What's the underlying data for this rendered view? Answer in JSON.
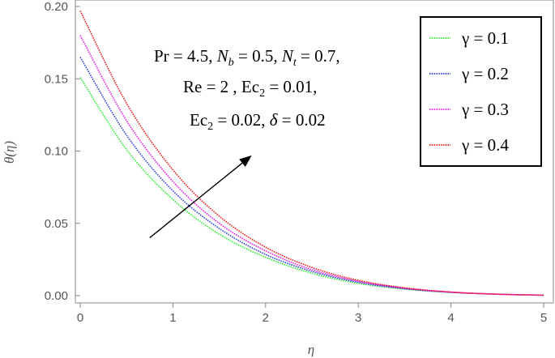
{
  "chart_data": {
    "type": "line",
    "xlabel": "η",
    "ylabel": "θ(η)",
    "xlim": [
      0,
      5
    ],
    "ylim": [
      0,
      0.2
    ],
    "x_ticks": [
      "0",
      "1",
      "2",
      "3",
      "4",
      "5"
    ],
    "y_ticks": [
      "0.00",
      "0.05",
      "0.10",
      "0.15",
      "0.20"
    ],
    "grid": false,
    "legend_position": "top-right",
    "x": [
      0,
      0.5,
      1,
      1.5,
      2,
      2.5,
      3,
      3.5,
      4,
      4.5,
      5
    ],
    "series": [
      {
        "name": "γ = 0.1",
        "color": "#33ee33",
        "values": [
          0.151,
          0.101,
          0.0665,
          0.0425,
          0.0265,
          0.0155,
          0.0085,
          0.0045,
          0.0022,
          0.001,
          0.0003
        ]
      },
      {
        "name": "γ = 0.2",
        "color": "#3344dd",
        "values": [
          0.165,
          0.111,
          0.0725,
          0.0465,
          0.0285,
          0.0168,
          0.0092,
          0.0048,
          0.0023,
          0.001,
          0.0003
        ]
      },
      {
        "name": "γ = 0.3",
        "color": "#ee22ee",
        "values": [
          0.18,
          0.121,
          0.079,
          0.05,
          0.031,
          0.018,
          0.0099,
          0.0051,
          0.0024,
          0.001,
          0.0003
        ]
      },
      {
        "name": "γ = 0.4",
        "color": "#ee2222",
        "values": [
          0.197,
          0.133,
          0.087,
          0.055,
          0.0335,
          0.0195,
          0.0106,
          0.0054,
          0.0025,
          0.001,
          0.0003
        ]
      }
    ],
    "annotation": {
      "lines": [
        "Pr = 4.5,  N_b = 0.5, N_t = 0.7,",
        "Re = 2 , Ec_2 = 0.01,",
        "Ec_2 = 0.02, δ = 0.02"
      ]
    },
    "arrow": {
      "from": [
        0.75,
        0.04
      ],
      "to": [
        1.85,
        0.097
      ]
    }
  }
}
